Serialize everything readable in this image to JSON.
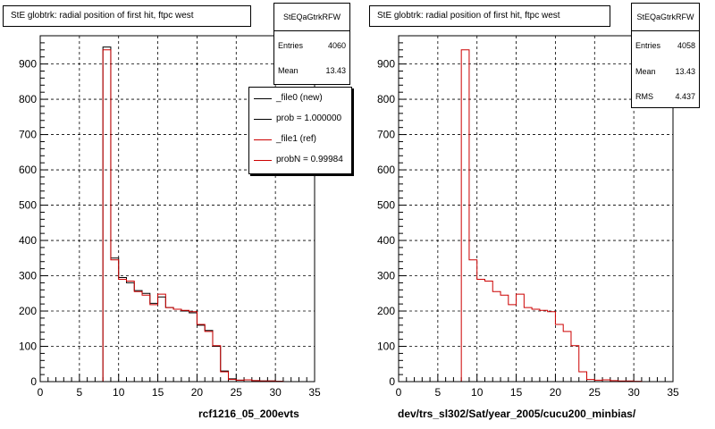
{
  "chart_data": [
    {
      "type": "histogram",
      "title": "StE globtrk: radial position of first hit, ftpc west",
      "xlabel": "rcf1216_05_200evts",
      "ylabel": "",
      "xlim": [
        0,
        35
      ],
      "ylim": [
        0,
        980
      ],
      "grid": true,
      "bin_width": 1,
      "x_ticks": [
        0,
        5,
        10,
        15,
        20,
        25,
        30,
        35
      ],
      "y_ticks": [
        0,
        100,
        200,
        300,
        400,
        500,
        600,
        700,
        800,
        900
      ],
      "stats": {
        "name": "StEQaGtrkRFW",
        "entries_label": "Entries",
        "entries": "4060",
        "mean_label": "Mean",
        "mean": "13.43"
      },
      "legend": [
        {
          "label": "_file0 (new)",
          "color": "#000000"
        },
        {
          "label": "prob = 1.000000",
          "color": "#000000"
        },
        {
          "label": "_file1 (ref)",
          "color": "#cc0000"
        },
        {
          "label": "probN = 0.99984",
          "color": "#cc0000"
        }
      ],
      "legend_position": "top-right",
      "series": [
        {
          "name": "_file0 (new)",
          "color": "#000000",
          "x": [
            8,
            9,
            10,
            11,
            12,
            13,
            14,
            15,
            16,
            17,
            18,
            19,
            20,
            21,
            22,
            23,
            24,
            25,
            26,
            27,
            28,
            29,
            30
          ],
          "values": [
            948,
            350,
            295,
            280,
            258,
            250,
            222,
            240,
            210,
            205,
            200,
            195,
            160,
            145,
            100,
            30,
            8,
            4,
            5,
            3,
            2,
            2,
            1
          ]
        },
        {
          "name": "_file1 (ref)",
          "color": "#cc0000",
          "x": [
            8,
            9,
            10,
            11,
            12,
            13,
            14,
            15,
            16,
            17,
            18,
            19,
            20,
            21,
            22,
            23,
            24,
            25,
            26,
            27,
            28,
            29,
            30
          ],
          "values": [
            940,
            345,
            290,
            285,
            255,
            245,
            218,
            248,
            210,
            205,
            202,
            198,
            162,
            142,
            102,
            28,
            6,
            4,
            5,
            3,
            2,
            2,
            1
          ]
        }
      ]
    },
    {
      "type": "histogram",
      "title": "StE globtrk: radial position of first hit, ftpc west",
      "xlabel": "dev/trs_sl302/Sat/year_2005/cucu200_minbias/",
      "ylabel": "",
      "xlim": [
        0,
        35
      ],
      "ylim": [
        0,
        980
      ],
      "grid": true,
      "bin_width": 1,
      "x_ticks": [
        0,
        5,
        10,
        15,
        20,
        25,
        30,
        35
      ],
      "y_ticks": [
        0,
        100,
        200,
        300,
        400,
        500,
        600,
        700,
        800,
        900
      ],
      "stats": {
        "name": "StEQaGtrkRFW",
        "entries_label": "Entries",
        "entries": "4058",
        "mean_label": "Mean",
        "mean": "13.43",
        "rms_label": "RMS",
        "rms": "4.437"
      },
      "series": [
        {
          "name": "",
          "color": "#cc0000",
          "x": [
            8,
            9,
            10,
            11,
            12,
            13,
            14,
            15,
            16,
            17,
            18,
            19,
            20,
            21,
            22,
            23,
            24,
            25,
            26,
            27,
            28,
            29,
            30
          ],
          "values": [
            940,
            345,
            290,
            285,
            255,
            245,
            218,
            248,
            210,
            205,
            202,
            198,
            162,
            142,
            102,
            28,
            6,
            4,
            5,
            3,
            2,
            2,
            1
          ]
        }
      ]
    }
  ]
}
